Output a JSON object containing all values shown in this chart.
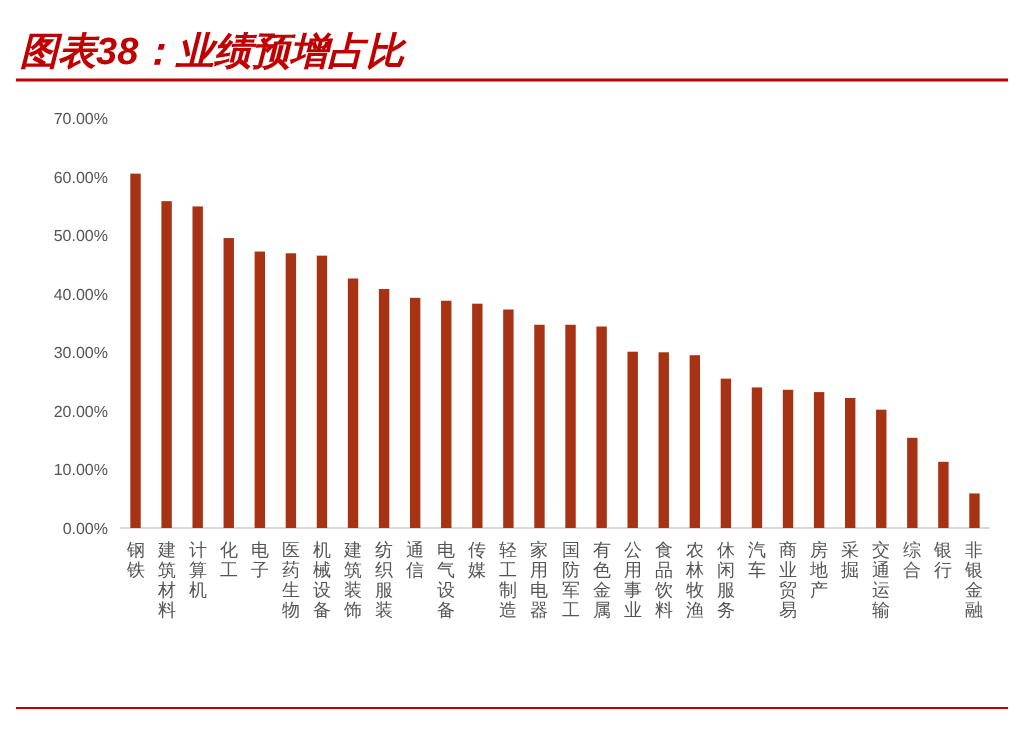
{
  "chart_data": {
    "type": "bar",
    "title": "图表38：业绩预增占比",
    "categories": [
      "钢铁",
      "建筑材料",
      "计算机",
      "化工",
      "电子",
      "医药生物",
      "机械设备",
      "建筑装饰",
      "纺织服装",
      "通信",
      "电气设备",
      "传媒",
      "轻工制造",
      "家用电器",
      "国防军工",
      "有色金属",
      "公用事业",
      "食品饮料",
      "农林牧渔",
      "休闲服务",
      "汽车",
      "商业贸易",
      "房地产",
      "采掘",
      "交通运输",
      "综合",
      "银行",
      "非银金融"
    ],
    "values": [
      60.5,
      55.8,
      54.9,
      49.5,
      47.2,
      46.9,
      46.5,
      42.6,
      40.8,
      39.3,
      38.8,
      38.3,
      37.3,
      34.7,
      34.7,
      34.4,
      30.1,
      30.0,
      29.5,
      25.5,
      24.0,
      23.6,
      23.2,
      22.2,
      20.2,
      15.4,
      11.3,
      5.9
    ],
    "color": "#a83214",
    "ylim": [
      0,
      70
    ],
    "yticks": [
      {
        "value": 0,
        "label": "0.00%"
      },
      {
        "value": 10,
        "label": "10.00%"
      },
      {
        "value": 20,
        "label": "20.00%"
      },
      {
        "value": 30,
        "label": "30.00%"
      },
      {
        "value": 40,
        "label": "40.00%"
      },
      {
        "value": 50,
        "label": "50.00%"
      },
      {
        "value": 60,
        "label": "60.00%"
      },
      {
        "value": 70,
        "label": "70.00%"
      }
    ],
    "grid": false
  }
}
